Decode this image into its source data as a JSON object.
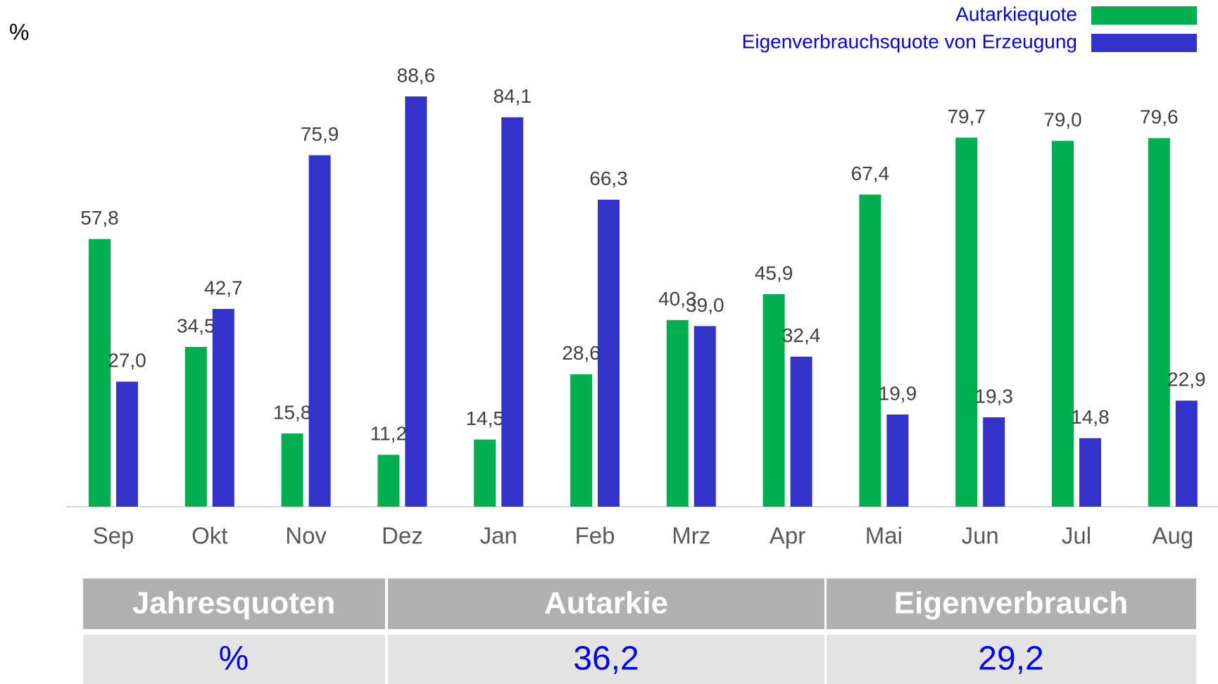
{
  "chart_data": {
    "type": "bar",
    "unit": "%",
    "categories": [
      "Sep",
      "Okt",
      "Nov",
      "Dez",
      "Jan",
      "Feb",
      "Mrz",
      "Apr",
      "Mai",
      "Jun",
      "Jul",
      "Aug"
    ],
    "series": [
      {
        "name": "Autarkiequote",
        "color": "#00b050",
        "values": [
          57.8,
          34.5,
          15.8,
          11.2,
          14.5,
          28.6,
          40.3,
          45.9,
          67.4,
          79.7,
          79.0,
          79.6
        ],
        "value_labels": [
          "57,8",
          "34,5",
          "15,8",
          "11,2",
          "14,5",
          "28,6",
          "40,3",
          "45,9",
          "67,4",
          "79,7",
          "79,0",
          "79,6"
        ]
      },
      {
        "name": "Eigenverbrauchsquote von Erzeugung",
        "color": "#3333cc",
        "values": [
          27.0,
          42.7,
          75.9,
          88.6,
          84.1,
          66.3,
          39.0,
          32.4,
          19.9,
          19.3,
          14.8,
          22.9
        ],
        "value_labels": [
          "27,0",
          "42,7",
          "75,9",
          "88,6",
          "84,1",
          "66,3",
          "39,0",
          "32,4",
          "19,9",
          "19,3",
          "14,8",
          "22,9"
        ]
      }
    ],
    "legend": "top-right"
  },
  "table": {
    "header": [
      "Jahresquoten",
      "Autarkie",
      "Eigenverbrauch"
    ],
    "rows": [
      [
        "%",
        "36,2",
        "29,2"
      ]
    ]
  }
}
